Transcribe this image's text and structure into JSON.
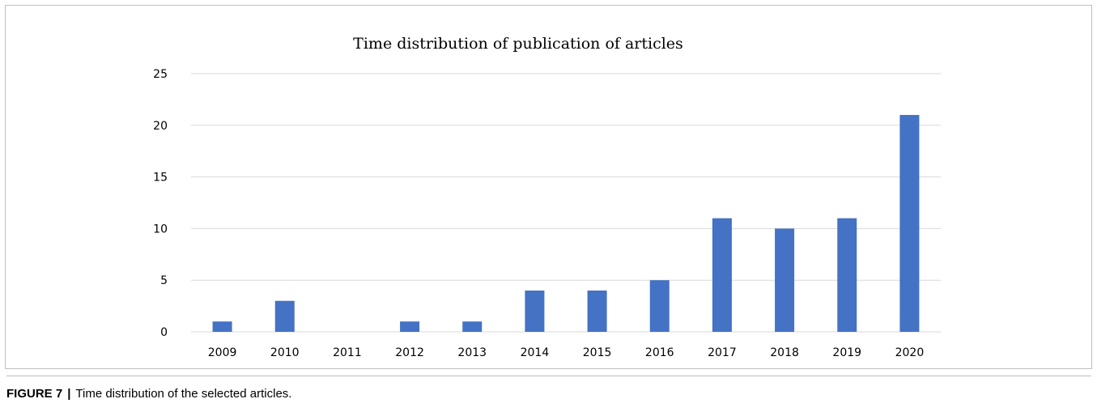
{
  "chart_data": {
    "type": "bar",
    "title": "Time distribution of publication of articles",
    "categories": [
      "2009",
      "2010",
      "2011",
      "2012",
      "2013",
      "2014",
      "2015",
      "2016",
      "2017",
      "2018",
      "2019",
      "2020"
    ],
    "values": [
      1,
      3,
      0,
      1,
      1,
      4,
      4,
      5,
      11,
      10,
      11,
      21
    ],
    "xlabel": "",
    "ylabel": "",
    "ylim": [
      0,
      25
    ],
    "yticks": [
      0,
      5,
      10,
      15,
      20,
      25
    ],
    "grid": true,
    "bar_color": "#4472c4",
    "grid_color": "#d9d9d9"
  },
  "caption": {
    "label": "FIGURE 7",
    "separator": "|",
    "text": "Time distribution of the selected articles."
  }
}
